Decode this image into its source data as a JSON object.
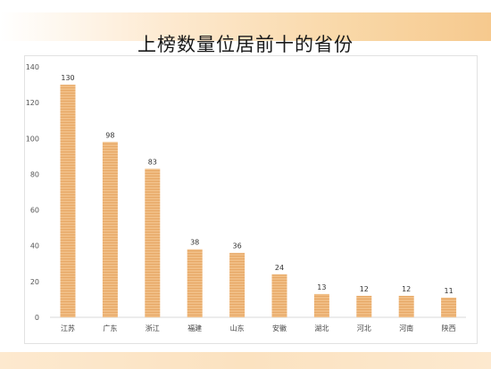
{
  "chart_data": {
    "type": "bar",
    "title": "上榜数量位居前十的省份",
    "categories": [
      "江苏",
      "广东",
      "浙江",
      "福建",
      "山东",
      "安徽",
      "湖北",
      "河北",
      "河南",
      "陕西"
    ],
    "values": [
      130,
      98,
      83,
      38,
      36,
      24,
      13,
      12,
      12,
      11
    ],
    "ylim": [
      0,
      140
    ],
    "yticks": [
      0,
      20,
      40,
      60,
      80,
      100,
      120,
      140
    ],
    "xlabel": "",
    "ylabel": "",
    "grid": false,
    "bar_color": "#f0bd84",
    "bar_stripe_color": "#e7a866"
  }
}
